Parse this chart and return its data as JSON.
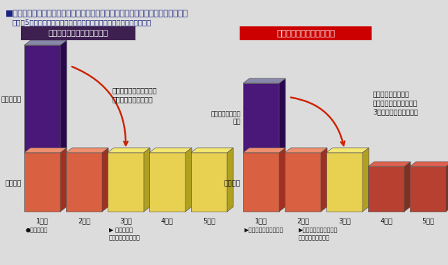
{
  "title": "■全面再構築による、開発コストと投資回収期間をマイグレーションと比較した例",
  "subtitle": "（注：5年間回収モデル。既存システム資産の規模により実態は様々）",
  "title_color": "#1a237e",
  "subtitle_color": "#1a237e",
  "bg_color": "#dcdcdc",
  "left_header": "全面再構築（新規作り直し）",
  "left_header_bg": "#3d2050",
  "right_header": "レガシーマイグレーション",
  "right_header_bg": "#cc0000",
  "header_text_color": "#ffffff",
  "left_x_labels": [
    "1年目",
    "2年目",
    "3年目",
    "4年目",
    "5年目"
  ],
  "right_x_labels": [
    "1年目",
    "2年目",
    "3年目",
    "4年目",
    "5年目"
  ],
  "left_rebuild_label": "再構築費用",
  "left_annual_label": "年間費用",
  "left_start_label": "●再構築開始",
  "left_end_label": "▶ 再構築完了\nメインフレーム廃去",
  "left_question": "再構築費用やコスト削減\n効果のメドが立つか？",
  "right_migration_label": "マイグレーション\n費用",
  "right_annual_label": "年間費用",
  "right_start_label": "▶マイグレーション開始",
  "right_end_label": "▶マイグレーション完了\nメインフレーム廃去",
  "right_question": "年間経費の削減分で\nマイグレーション費用を\n3年以内で回収できるか"
}
